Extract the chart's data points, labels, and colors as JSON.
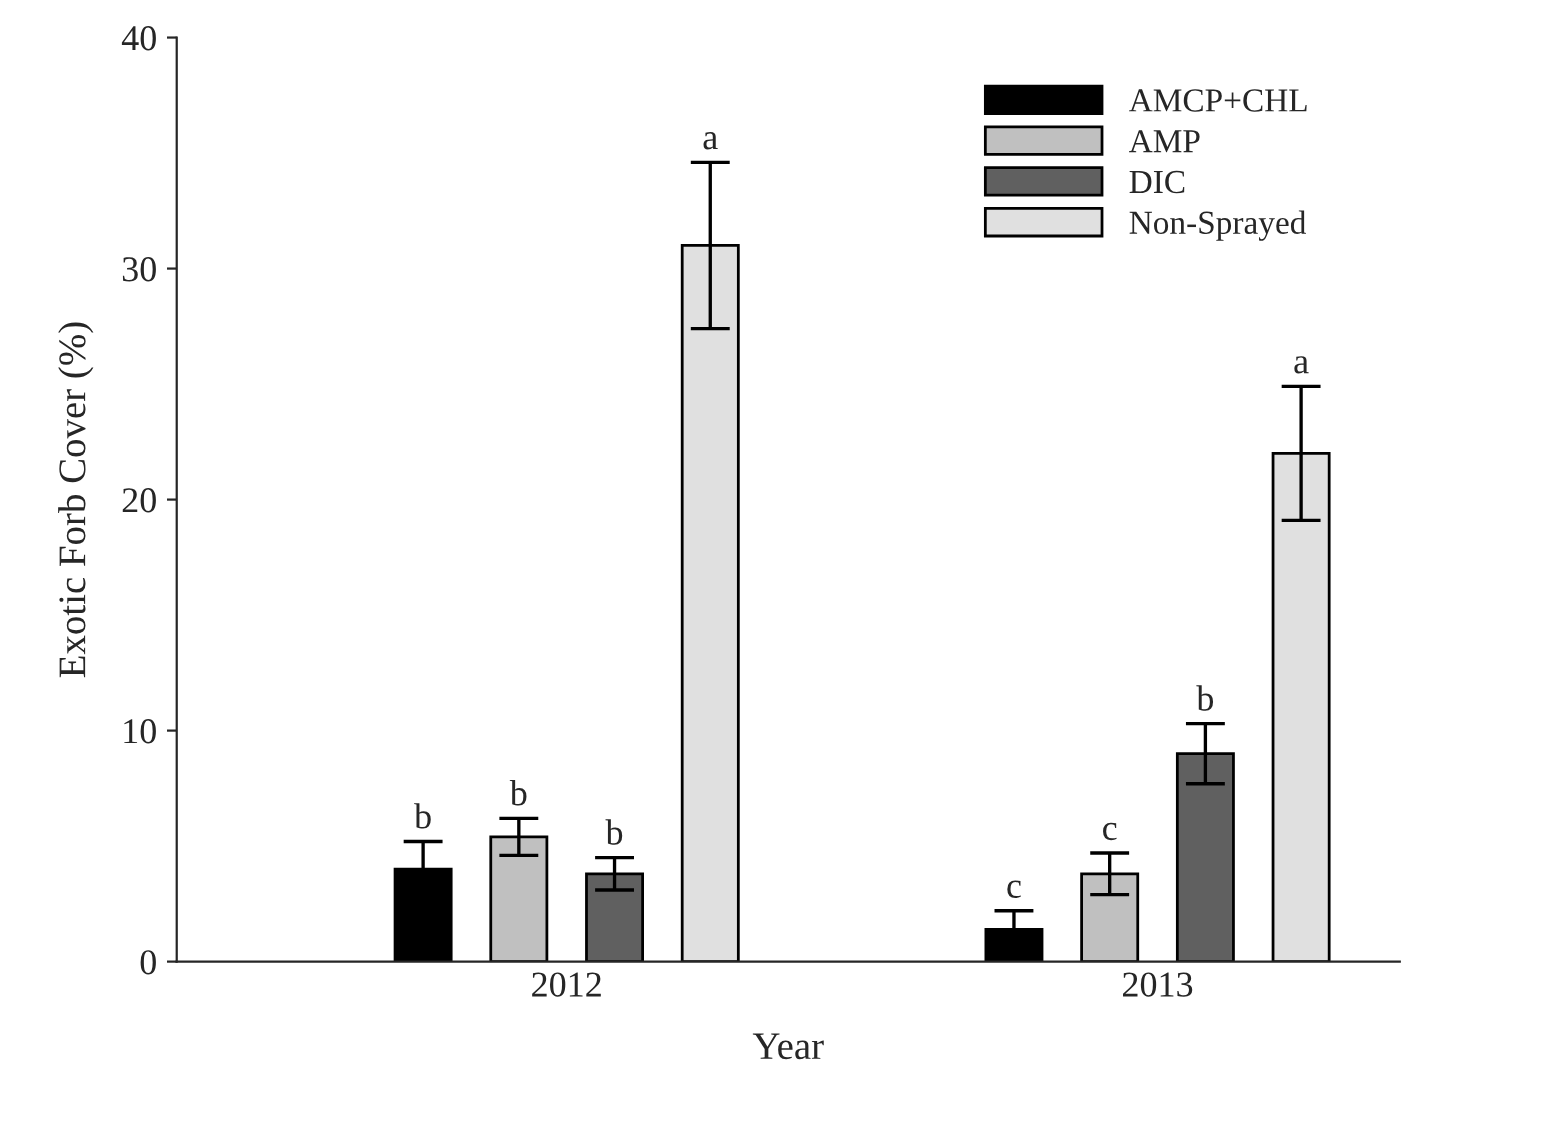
{
  "chart_data": {
    "type": "bar",
    "xlabel": "Year",
    "ylabel": "Exotic Forb Cover (%)",
    "categories": [
      "2012",
      "2013"
    ],
    "series": [
      {
        "name": "AMCP+CHL",
        "color": "#000000",
        "values": [
          4.0,
          1.4
        ],
        "errors": [
          1.2,
          0.8
        ]
      },
      {
        "name": "AMP",
        "color": "#c0c0c0",
        "values": [
          5.4,
          3.8
        ],
        "errors": [
          0.8,
          0.9
        ]
      },
      {
        "name": "DIC",
        "color": "#606060",
        "values": [
          3.8,
          9.0
        ],
        "errors": [
          0.7,
          1.3
        ]
      },
      {
        "name": "Non-Sprayed",
        "color": "#e0e0e0",
        "values": [
          31.0,
          22.0
        ],
        "errors": [
          3.6,
          2.9
        ]
      }
    ],
    "ylim": [
      0,
      40
    ],
    "yticks": [
      0,
      10,
      20,
      30,
      40
    ],
    "grid": false,
    "legend": "top right",
    "annotations": [
      "b",
      "b",
      "b",
      "a",
      "c",
      "c",
      "b",
      "a"
    ]
  }
}
